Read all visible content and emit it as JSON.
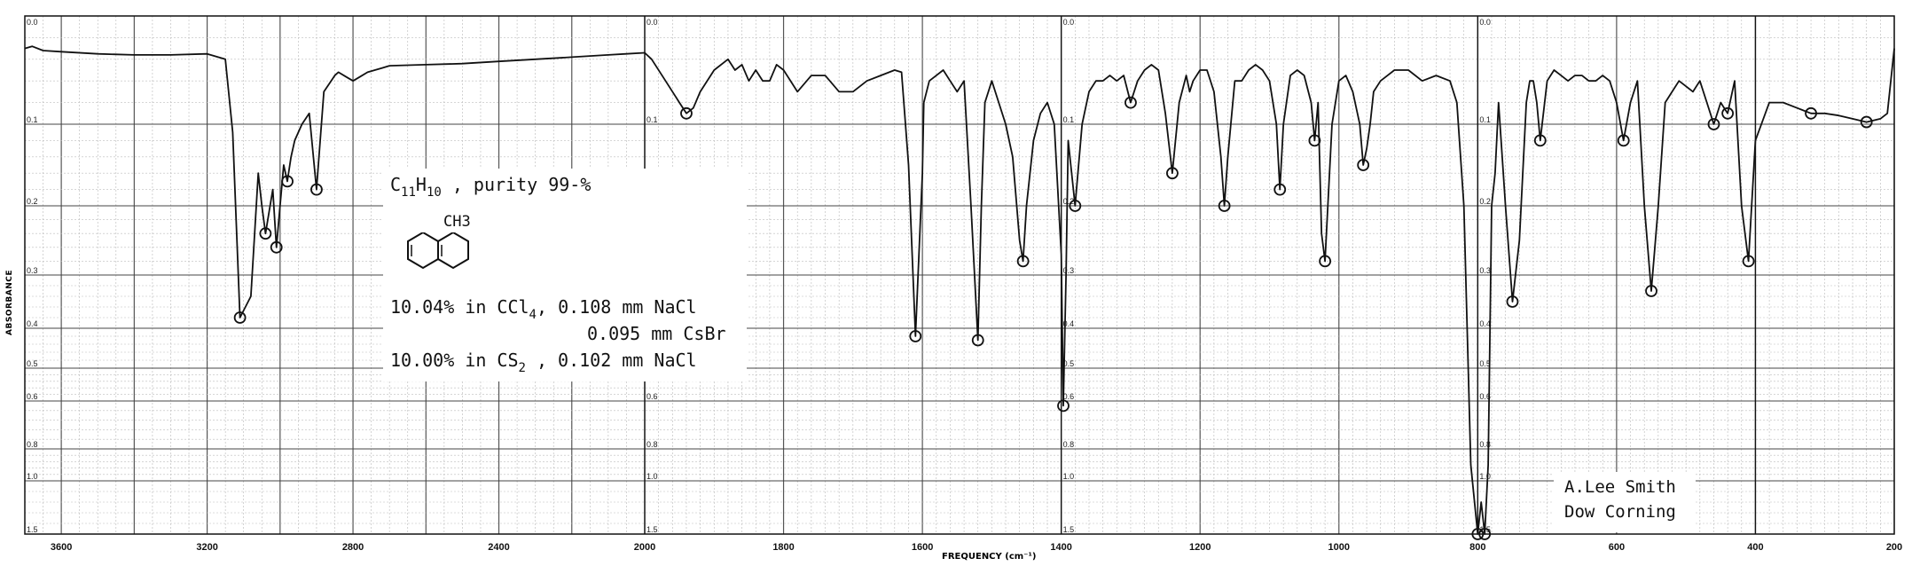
{
  "chart_data": {
    "type": "line",
    "xlabel": "FREQUENCY (cm⁻¹)",
    "ylabel": "ABSORBANCE",
    "x_scale": "linear, scale change at 2000 cm⁻¹",
    "xlim": [
      3700,
      200
    ],
    "ylim": [
      0.0,
      1.5
    ],
    "y_scale": "log (absorbance)",
    "x_ticks": [
      3600,
      3200,
      2800,
      2400,
      2000,
      1800,
      1600,
      1400,
      1200,
      1000,
      800,
      600,
      400,
      200
    ],
    "y_ticks": [
      "0.0",
      "0.1",
      "0.2",
      "0.3",
      "0.4",
      "0.5",
      "0.6",
      "0.8",
      "1.0",
      "1.5"
    ],
    "grid": true,
    "series": [
      {
        "x": [
          3700,
          3680,
          3650,
          3600,
          3500,
          3400,
          3300,
          3200,
          3150,
          3130,
          3110,
          3080,
          3060,
          3050,
          3040,
          3020,
          3010,
          3000,
          2990,
          2980,
          2970,
          2960,
          2940,
          2920,
          2900,
          2880,
          2860,
          2850,
          2840,
          2820,
          2800,
          2780,
          2760,
          2740,
          2720,
          2700,
          2600,
          2500,
          2400,
          2300,
          2200,
          2100,
          2050,
          2000,
          1990,
          1970,
          1950,
          1940,
          1930,
          1920,
          1900,
          1880,
          1870,
          1860,
          1850,
          1840,
          1830,
          1820,
          1810,
          1800,
          1780,
          1760,
          1740,
          1720,
          1700,
          1680,
          1660,
          1640,
          1630,
          1620,
          1610,
          1600,
          1598,
          1590,
          1580,
          1570,
          1560,
          1550,
          1540,
          1530,
          1520,
          1515,
          1510,
          1500,
          1490,
          1480,
          1470,
          1460,
          1455,
          1450,
          1440,
          1430,
          1420,
          1410,
          1400,
          1397,
          1393,
          1390,
          1385,
          1380,
          1370,
          1360,
          1350,
          1340,
          1330,
          1320,
          1310,
          1300,
          1290,
          1280,
          1270,
          1260,
          1250,
          1240,
          1230,
          1220,
          1215,
          1210,
          1200,
          1190,
          1180,
          1170,
          1165,
          1160,
          1150,
          1140,
          1130,
          1120,
          1110,
          1100,
          1090,
          1085,
          1080,
          1070,
          1060,
          1050,
          1040,
          1035,
          1030,
          1025,
          1020,
          1010,
          1000,
          990,
          980,
          970,
          965,
          960,
          955,
          950,
          940,
          930,
          920,
          910,
          900,
          880,
          860,
          840,
          830,
          820,
          810,
          800,
          795,
          790,
          785,
          780,
          775,
          770,
          760,
          750,
          740,
          730,
          725,
          720,
          715,
          710,
          700,
          690,
          680,
          670,
          660,
          650,
          640,
          630,
          620,
          610,
          600,
          590,
          580,
          570,
          560,
          550,
          540,
          530,
          520,
          510,
          500,
          490,
          480,
          470,
          460,
          450,
          440,
          430,
          420,
          410,
          400,
          380,
          360,
          340,
          320,
          300,
          280,
          260,
          240,
          220,
          210,
          200
        ],
        "y": [
          0.03,
          0.028,
          0.032,
          0.033,
          0.035,
          0.036,
          0.036,
          0.035,
          0.04,
          0.11,
          0.38,
          0.34,
          0.16,
          0.2,
          0.24,
          0.18,
          0.26,
          0.2,
          0.15,
          0.17,
          0.14,
          0.12,
          0.1,
          0.09,
          0.18,
          0.07,
          0.06,
          0.055,
          0.052,
          0.056,
          0.06,
          0.056,
          0.052,
          0.05,
          0.048,
          0.046,
          0.045,
          0.044,
          0.042,
          0.04,
          0.038,
          0.036,
          0.035,
          0.034,
          0.04,
          0.06,
          0.08,
          0.09,
          0.085,
          0.07,
          0.05,
          0.04,
          0.05,
          0.045,
          0.06,
          0.05,
          0.06,
          0.06,
          0.045,
          0.05,
          0.07,
          0.055,
          0.055,
          0.07,
          0.07,
          0.06,
          0.055,
          0.05,
          0.052,
          0.15,
          0.42,
          0.16,
          0.08,
          0.06,
          0.055,
          0.05,
          0.06,
          0.07,
          0.06,
          0.2,
          0.43,
          0.2,
          0.08,
          0.06,
          0.08,
          0.1,
          0.14,
          0.25,
          0.28,
          0.2,
          0.12,
          0.09,
          0.08,
          0.1,
          0.27,
          0.62,
          0.3,
          0.12,
          0.16,
          0.2,
          0.1,
          0.07,
          0.06,
          0.06,
          0.055,
          0.06,
          0.055,
          0.08,
          0.06,
          0.05,
          0.045,
          0.05,
          0.09,
          0.16,
          0.08,
          0.055,
          0.07,
          0.06,
          0.05,
          0.05,
          0.07,
          0.14,
          0.2,
          0.14,
          0.06,
          0.06,
          0.05,
          0.045,
          0.05,
          0.06,
          0.1,
          0.18,
          0.1,
          0.055,
          0.05,
          0.055,
          0.08,
          0.12,
          0.08,
          0.24,
          0.28,
          0.1,
          0.06,
          0.055,
          0.07,
          0.1,
          0.15,
          0.13,
          0.1,
          0.07,
          0.06,
          0.055,
          0.05,
          0.05,
          0.05,
          0.06,
          0.055,
          0.06,
          0.08,
          0.2,
          0.9,
          1.5,
          1.2,
          1.5,
          0.9,
          0.2,
          0.16,
          0.08,
          0.2,
          0.35,
          0.25,
          0.08,
          0.06,
          0.06,
          0.08,
          0.12,
          0.06,
          0.05,
          0.055,
          0.06,
          0.055,
          0.055,
          0.06,
          0.06,
          0.055,
          0.06,
          0.08,
          0.12,
          0.08,
          0.06,
          0.2,
          0.33,
          0.2,
          0.08,
          0.07,
          0.06,
          0.065,
          0.07,
          0.06,
          0.08,
          0.1,
          0.08,
          0.09,
          0.06,
          0.2,
          0.28,
          0.12,
          0.08,
          0.08,
          0.085,
          0.09,
          0.09,
          0.092,
          0.095,
          0.098,
          0.095,
          0.09,
          0.03
        ]
      }
    ],
    "annotations": [
      "C11H10 , purity 99-%",
      "CH3",
      "10.04% in CCl4, 0.108 mm NaCl",
      "0.095 mm CsBr",
      "10.00% in CS2 , 0.102 mm NaCl",
      "A.Lee Smith",
      "Dow Corning"
    ]
  },
  "sample": {
    "formula_c": "C",
    "formula_c_sub": "11",
    "formula_h": "H",
    "formula_h_sub": "10",
    "formula_tail": " , purity 99-%",
    "substituent": "CH3",
    "line1_a": "10.04% in CCl",
    "line1_sub": "4",
    "line1_b": ", 0.108 mm NaCl",
    "line2": "0.095 mm CsBr",
    "line3_a": "10.00% in CS",
    "line3_sub": "2",
    "line3_b": " , 0.102 mm NaCl"
  },
  "signature": {
    "line1": "A.Lee Smith",
    "line2": "Dow Corning"
  }
}
